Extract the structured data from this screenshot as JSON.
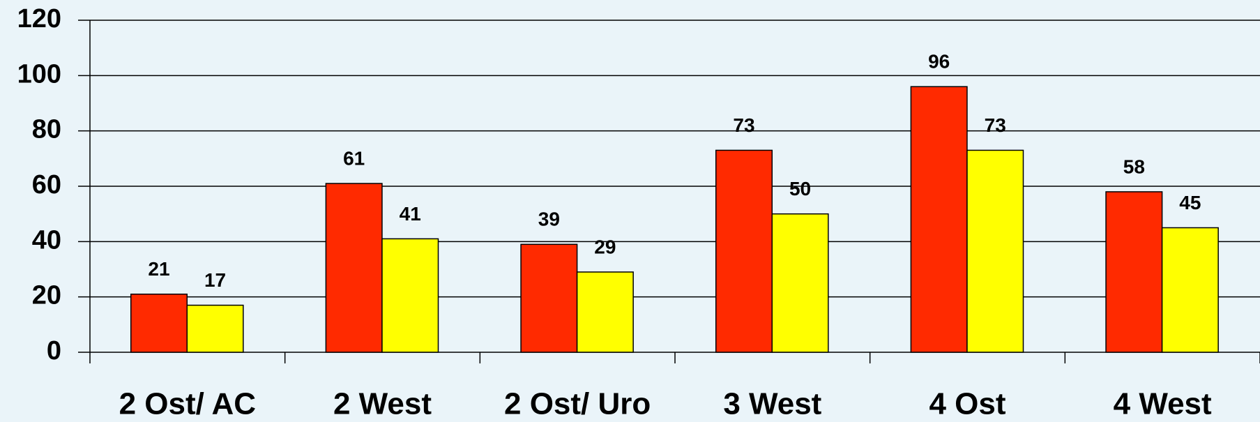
{
  "chart_data": {
    "type": "bar",
    "categories": [
      "2 Ost/ AC",
      "2 West",
      "2 Ost/ Uro",
      "3 West",
      "4 Ost",
      "4 West"
    ],
    "series": [
      {
        "color": "#ff2a00",
        "values": [
          21,
          61,
          39,
          73,
          96,
          58
        ]
      },
      {
        "color": "#ffff00",
        "values": [
          17,
          41,
          29,
          50,
          73,
          45
        ]
      }
    ],
    "ylim": [
      0,
      120
    ],
    "yticks": [
      0,
      20,
      40,
      60,
      80,
      100,
      120
    ],
    "grid": true
  }
}
